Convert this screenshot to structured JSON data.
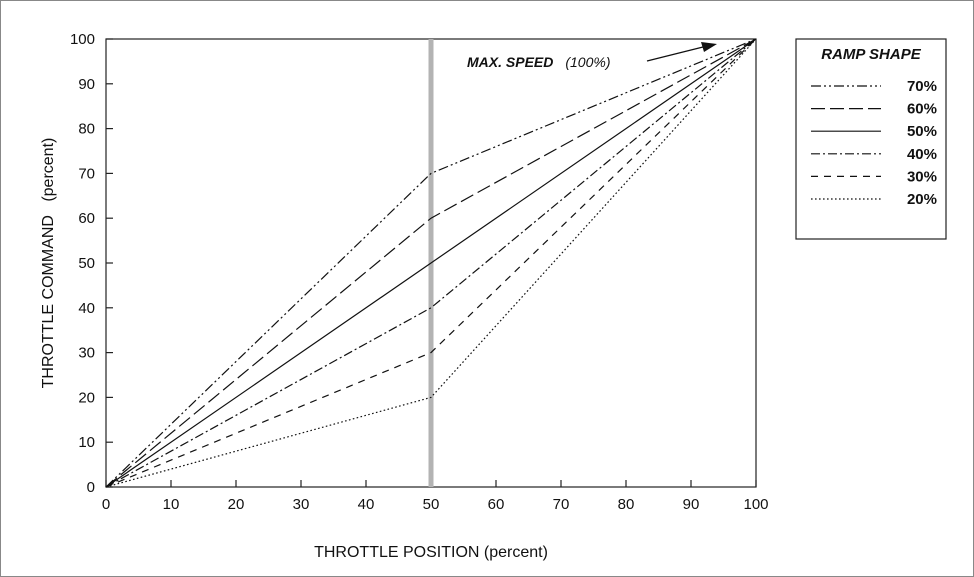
{
  "chart_data": {
    "type": "line",
    "title": "",
    "xlabel": "THROTTLE POSITION  (percent)",
    "ylabel": "THROTTLE COMMAND   (percent)",
    "xlim": [
      0,
      100
    ],
    "ylim": [
      0,
      100
    ],
    "xticks": [
      "0",
      "10",
      "20",
      "30",
      "40",
      "50",
      "60",
      "70",
      "80",
      "90",
      "100"
    ],
    "yticks": [
      "0",
      "10",
      "20",
      "30",
      "40",
      "50",
      "60",
      "70",
      "80",
      "90",
      "100"
    ],
    "grid": false,
    "legend_title": "RAMP SHAPE",
    "legend_position": "top-right, outside plot",
    "vertical_marker": {
      "x": 50,
      "color": "#b3b3b3"
    },
    "annotation": {
      "bold_text": "MAX. SPEED",
      "italic_text": "(100%)",
      "arrow_to": [
        100,
        100
      ]
    },
    "series": [
      {
        "name": "70%",
        "line_style": "dash-dot-dot",
        "x": [
          0,
          50,
          100
        ],
        "values": [
          0,
          70,
          100
        ]
      },
      {
        "name": "60%",
        "line_style": "long-dash",
        "x": [
          0,
          50,
          100
        ],
        "values": [
          0,
          60,
          100
        ]
      },
      {
        "name": "50%",
        "line_style": "solid",
        "x": [
          0,
          50,
          100
        ],
        "values": [
          0,
          50,
          100
        ]
      },
      {
        "name": "40%",
        "line_style": "dash-dot",
        "x": [
          0,
          50,
          100
        ],
        "values": [
          0,
          40,
          100
        ]
      },
      {
        "name": "30%",
        "line_style": "short-dash",
        "x": [
          0,
          50,
          100
        ],
        "values": [
          0,
          30,
          100
        ]
      },
      {
        "name": "20%",
        "line_style": "dotted",
        "x": [
          0,
          50,
          100
        ],
        "values": [
          0,
          20,
          100
        ]
      }
    ]
  }
}
